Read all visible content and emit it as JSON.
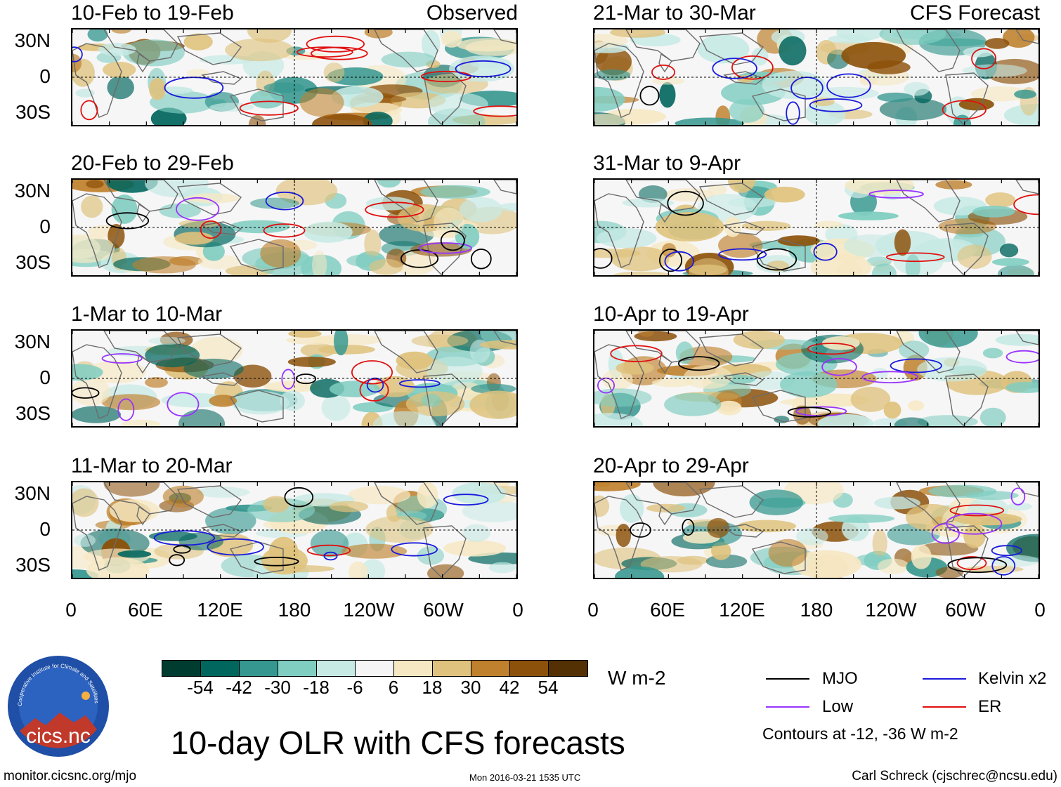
{
  "main_title": "10-day OLR with CFS forecasts",
  "observed_label": "Observed",
  "forecast_label": "CFS Forecast",
  "panels_observed": [
    {
      "title": "10-Feb to 19-Feb"
    },
    {
      "title": "20-Feb to 29-Feb"
    },
    {
      "title": "1-Mar to 10-Mar"
    },
    {
      "title": "11-Mar to 20-Mar"
    }
  ],
  "panels_forecast": [
    {
      "title": "21-Mar to 30-Mar"
    },
    {
      "title": "31-Mar to 9-Apr"
    },
    {
      "title": "10-Apr to 19-Apr"
    },
    {
      "title": "20-Apr to 29-Apr"
    }
  ],
  "y_axis_labels": [
    "30N",
    "0",
    "30S"
  ],
  "x_axis_labels": [
    "0",
    "60E",
    "120E",
    "180",
    "120W",
    "60W",
    "0"
  ],
  "colorbar": {
    "units": "W m-2",
    "tick_labels": [
      "-54",
      "-42",
      "-30",
      "-18",
      "-6",
      "6",
      "18",
      "30",
      "42",
      "54"
    ],
    "colors": [
      "#003c30",
      "#01665e",
      "#35978f",
      "#80cdc1",
      "#c7eae5",
      "#f5f5f5",
      "#f6e8c3",
      "#dfc27d",
      "#bf812d",
      "#8c510a",
      "#543005"
    ]
  },
  "legend": {
    "items": [
      {
        "label": "MJO",
        "color": "#000000"
      },
      {
        "label": "Kelvin x2",
        "color": "#1a1adc"
      },
      {
        "label": "Low",
        "color": "#9933ff"
      },
      {
        "label": "ER",
        "color": "#e01010"
      }
    ],
    "note": "Contours at -12, -36 W m-2"
  },
  "logo_text": "cics.nc",
  "logo_ring_text": "Cooperative Institute for Climate and Satellites",
  "footer": {
    "left": "monitor.cicsnc.org/mjo",
    "center": "Mon 2016-03-21 1535 UTC",
    "right": "Carl Schreck (cjschrec@ncsu.edu)"
  }
}
